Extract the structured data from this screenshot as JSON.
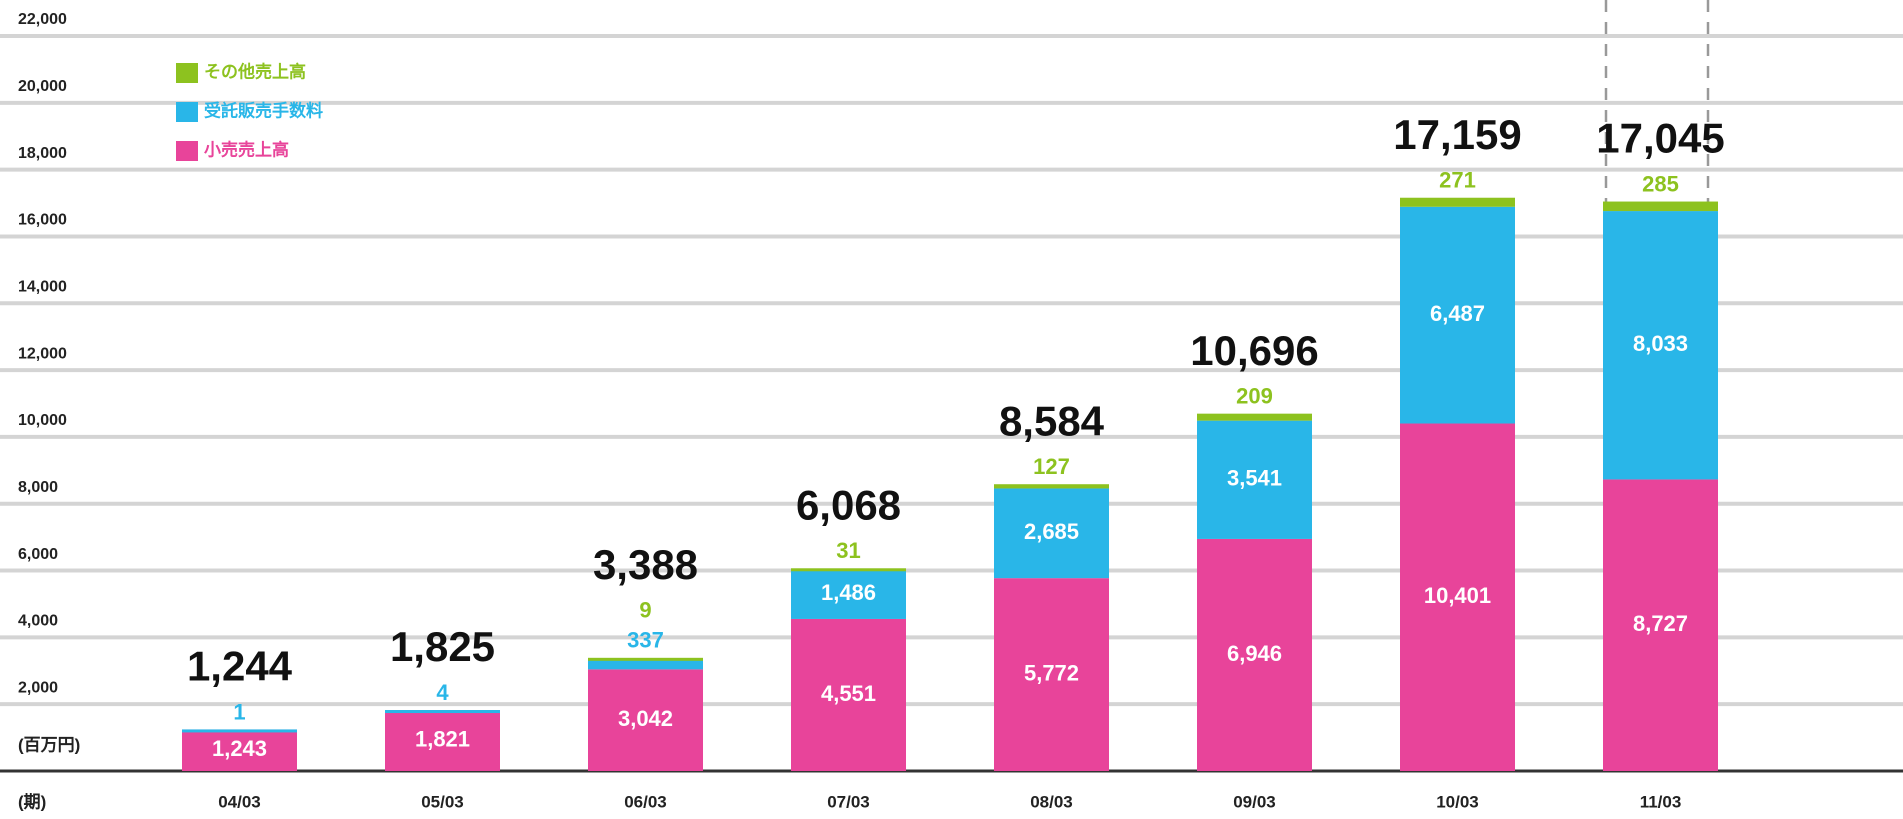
{
  "chart_data": {
    "type": "stacked_bar",
    "categories": [
      "04/03",
      "05/03",
      "06/03",
      "07/03",
      "08/03",
      "09/03",
      "10/03",
      "11/03"
    ],
    "series": [
      {
        "name": "小売売上高",
        "color": "#e8449a",
        "values": [
          1243,
          1821,
          3042,
          4551,
          5772,
          6946,
          10401,
          8727
        ],
        "value_labels": [
          "1,243",
          "1,821",
          "3,042",
          "4,551",
          "5,772",
          "6,946",
          "10,401",
          "8,727"
        ]
      },
      {
        "name": "受託販売手数料",
        "color": "#29b6e8",
        "values": [
          1,
          4,
          337,
          1486,
          2685,
          3541,
          6487,
          8033
        ],
        "value_labels": [
          "1",
          "4",
          "337",
          "1,486",
          "2,685",
          "3,541",
          "6,487",
          "8,033"
        ]
      },
      {
        "name": "その他売上高",
        "color": "#8dc21f",
        "values": [
          null,
          null,
          9,
          31,
          127,
          209,
          271,
          285
        ],
        "value_labels": [
          null,
          null,
          "9",
          "31",
          "127",
          "209",
          "271",
          "285"
        ]
      }
    ],
    "totals": {
      "values": [
        1244,
        1825,
        3388,
        6068,
        8584,
        10696,
        17159,
        17045
      ],
      "value_labels": [
        "1,244",
        "1,825",
        "3,388",
        "6,068",
        "8,584",
        "10,696",
        "17,159",
        "17,045"
      ]
    },
    "ylabel": "(百万円)",
    "xlabel": "(期)",
    "ylim": [
      0,
      22000
    ],
    "yticks": [
      {
        "value": 2000,
        "label": "2,000"
      },
      {
        "value": 4000,
        "label": "4,000"
      },
      {
        "value": 6000,
        "label": "6,000"
      },
      {
        "value": 8000,
        "label": "8,000"
      },
      {
        "value": 10000,
        "label": "10,000"
      },
      {
        "value": 12000,
        "label": "12,000"
      },
      {
        "value": 14000,
        "label": "14,000"
      },
      {
        "value": 16000,
        "label": "16,000"
      },
      {
        "value": 18000,
        "label": "18,000"
      },
      {
        "value": 20000,
        "label": "20,000"
      },
      {
        "value": 22000,
        "label": "22,000"
      }
    ],
    "grid": true,
    "legend": "upper left"
  }
}
